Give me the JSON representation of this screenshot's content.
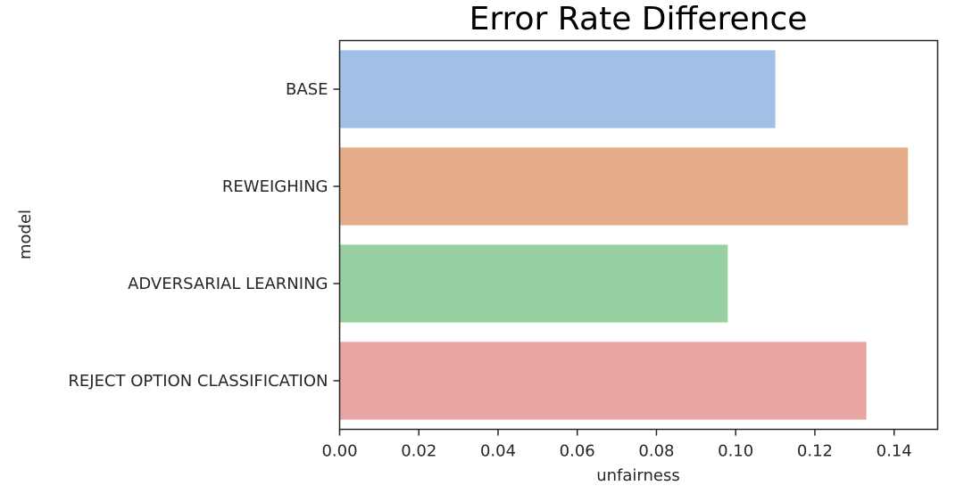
{
  "chart_data": {
    "type": "bar",
    "orientation": "horizontal",
    "title": "Error Rate Difference",
    "xlabel": "unfairness",
    "ylabel": "model",
    "categories": [
      "BASE",
      "REWEIGHING",
      "ADVERSARIAL LEARNING",
      "REJECT OPTION CLASSIFICATION"
    ],
    "values": [
      0.11,
      0.1435,
      0.098,
      0.133
    ],
    "colors": [
      "#a1c0e6",
      "#e6ad8a",
      "#96cfa0",
      "#e8a5a2"
    ],
    "xlim": [
      0.0,
      0.151
    ],
    "xticks": [
      0.0,
      0.02,
      0.04,
      0.06,
      0.08,
      0.1,
      0.12,
      0.14
    ],
    "xtick_labels": [
      "0.00",
      "0.02",
      "0.04",
      "0.06",
      "0.08",
      "0.10",
      "0.12",
      "0.14"
    ],
    "grid": false,
    "legend": "none"
  }
}
